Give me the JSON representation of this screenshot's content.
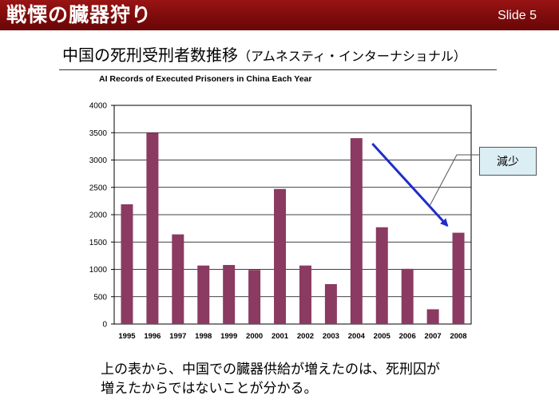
{
  "header": {
    "title": "戦慄の臓器狩り",
    "slide_number": "Slide 5"
  },
  "slide": {
    "title_main": "中国の死刑受刑者数推移",
    "title_sub": "（アムネスティ・インターナショナル）",
    "callout": "減少",
    "bottom_text_line1": "上の表から、中国での臓器供給が増えたのは、死刑囚が",
    "bottom_text_line2": "増えたからではないことが分かる。"
  },
  "colors": {
    "bar": "#8b3a62",
    "arrow": "#1f2ec8",
    "header": "#7e0b0b"
  },
  "chart_data": {
    "type": "bar",
    "title": "AI Records of Executed Prisoners in China Each Year",
    "categories": [
      "1995",
      "1996",
      "1997",
      "1998",
      "1999",
      "2000",
      "2001",
      "2002",
      "2003",
      "2004",
      "2005",
      "2006",
      "2007",
      "2008"
    ],
    "values": [
      2190,
      3500,
      1640,
      1070,
      1080,
      990,
      2470,
      1070,
      730,
      3400,
      1770,
      1010,
      270,
      1670
    ],
    "ylim": [
      0,
      4000
    ],
    "yticks": [
      0,
      500,
      1000,
      1500,
      2000,
      2500,
      3000,
      3500,
      4000
    ],
    "grid": true,
    "legend": "none",
    "annotation": {
      "type": "arrow",
      "from": "2004",
      "to": "2008",
      "label": "減少"
    }
  }
}
